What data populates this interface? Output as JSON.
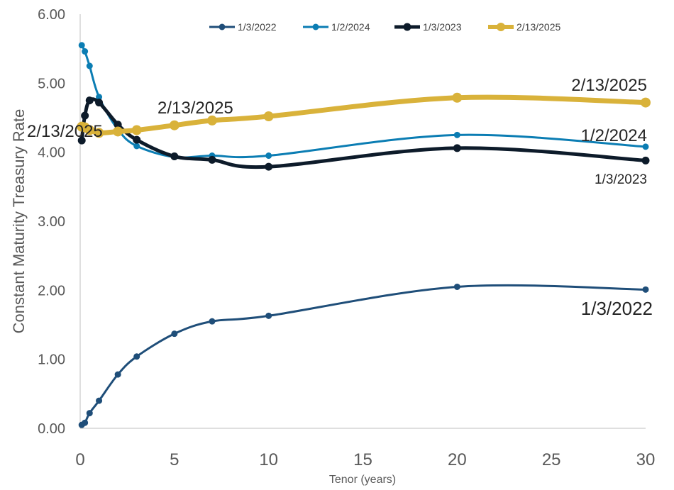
{
  "chart_data": {
    "type": "line",
    "title": "",
    "xlabel": "Tenor (years)",
    "ylabel": "Constant Maturity Treasury Rate",
    "xlim": [
      0,
      30
    ],
    "ylim": [
      0,
      6
    ],
    "x_ticks": [
      "0",
      "5",
      "10",
      "15",
      "20",
      "25",
      "30"
    ],
    "y_ticks": [
      "0.00",
      "1.00",
      "2.00",
      "3.00",
      "4.00",
      "5.00",
      "6.00"
    ],
    "grid": false,
    "legend_position": "top",
    "series": [
      {
        "name": "1/3/2022",
        "color": "#1f4e79",
        "x": [
          0.083,
          0.25,
          0.5,
          1,
          2,
          3,
          5,
          7,
          10,
          20,
          30
        ],
        "y": [
          0.05,
          0.08,
          0.22,
          0.4,
          0.78,
          1.04,
          1.37,
          1.55,
          1.63,
          2.05,
          2.01
        ]
      },
      {
        "name": "1/2/2024",
        "color": "#0b7db3",
        "x": [
          0.083,
          0.25,
          0.5,
          1,
          2,
          3,
          5,
          7,
          10,
          20,
          30
        ],
        "y": [
          5.55,
          5.46,
          5.25,
          4.8,
          4.33,
          4.09,
          3.93,
          3.95,
          3.95,
          4.25,
          4.08
        ]
      },
      {
        "name": "1/3/2023",
        "color": "#0d1b2a",
        "x": [
          0.083,
          0.25,
          0.5,
          1,
          2,
          3,
          5,
          7,
          10,
          20,
          30
        ],
        "y": [
          4.17,
          4.53,
          4.75,
          4.72,
          4.4,
          4.18,
          3.94,
          3.89,
          3.79,
          4.06,
          3.88
        ]
      },
      {
        "name": "2/13/2025",
        "color": "#d9b23a",
        "x": [
          0.083,
          0.25,
          0.5,
          1,
          2,
          3,
          5,
          7,
          10,
          20,
          30
        ],
        "y": [
          4.37,
          4.36,
          4.32,
          4.28,
          4.3,
          4.32,
          4.39,
          4.46,
          4.52,
          4.79,
          4.72
        ]
      }
    ],
    "annotations": [
      {
        "text": "2/13/2025"
      },
      {
        "text": "2/13/2025"
      },
      {
        "text": "2/13/2025"
      },
      {
        "text": "1/2/2024"
      },
      {
        "text": "1/3/2023"
      },
      {
        "text": "1/3/2022"
      }
    ]
  }
}
